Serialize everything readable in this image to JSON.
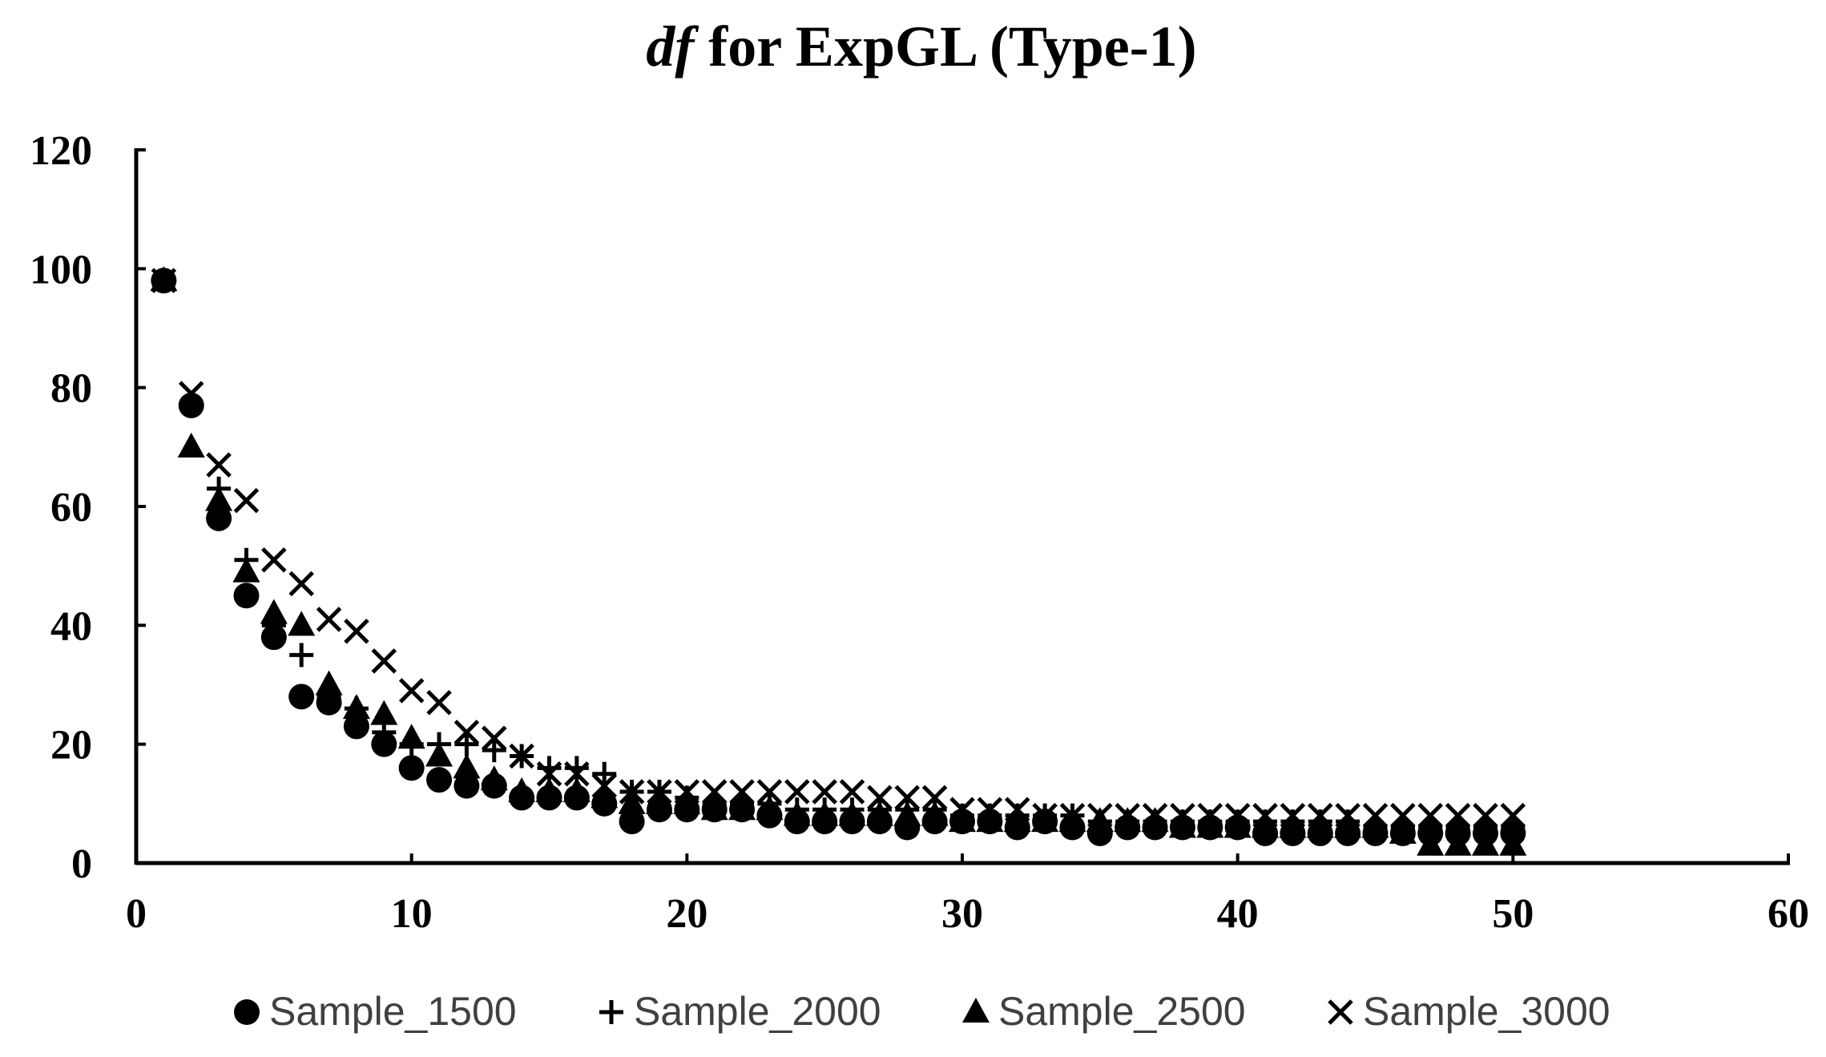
{
  "chart_data": {
    "type": "scatter",
    "title_italic": "df",
    "title_rest": " for ExpGL (Type-1)",
    "xlim": [
      0,
      60
    ],
    "ylim": [
      0,
      120
    ],
    "x_ticks": [
      0,
      10,
      20,
      30,
      40,
      50,
      60
    ],
    "y_ticks": [
      0,
      20,
      40,
      60,
      80,
      100,
      120
    ],
    "grid": false,
    "legend_position": "bottom",
    "x": [
      1,
      2,
      3,
      4,
      5,
      6,
      7,
      8,
      9,
      10,
      11,
      12,
      13,
      14,
      15,
      16,
      17,
      18,
      19,
      20,
      21,
      22,
      23,
      24,
      25,
      26,
      27,
      28,
      29,
      30,
      31,
      32,
      33,
      34,
      35,
      36,
      37,
      38,
      39,
      40,
      41,
      42,
      43,
      44,
      45,
      46,
      47,
      48,
      49,
      50
    ],
    "series": [
      {
        "name": "Sample_1500",
        "marker": "circle",
        "values": [
          98,
          77,
          58,
          45,
          38,
          28,
          27,
          23,
          20,
          16,
          14,
          13,
          13,
          11,
          11,
          11,
          10,
          7,
          9,
          9,
          9,
          9,
          8,
          7,
          7,
          7,
          7,
          6,
          7,
          7,
          7,
          6,
          7,
          6,
          5,
          6,
          6,
          6,
          6,
          6,
          5,
          5,
          5,
          5,
          5,
          5,
          5,
          5,
          5,
          5
        ]
      },
      {
        "name": "Sample_2000",
        "marker": "plus",
        "values": [
          98,
          77,
          63,
          51,
          40,
          35,
          28,
          26,
          22,
          20,
          20,
          20,
          19,
          18,
          16,
          16,
          15,
          12,
          12,
          11,
          10,
          10,
          10,
          9,
          9,
          9,
          9,
          9,
          9,
          8,
          8,
          8,
          8,
          8,
          7,
          7,
          7,
          7,
          7,
          7,
          7,
          7,
          7,
          7,
          6,
          6,
          6,
          6,
          6,
          6
        ]
      },
      {
        "name": "Sample_2500",
        "marker": "triangle",
        "values": [
          98,
          70,
          61,
          49,
          42,
          40,
          30,
          26,
          25,
          21,
          18,
          16,
          14,
          12,
          12,
          12,
          11,
          10,
          10,
          10,
          9,
          9,
          9,
          8,
          8,
          8,
          8,
          8,
          8,
          7,
          7,
          7,
          7,
          7,
          7,
          7,
          7,
          6,
          6,
          6,
          6,
          6,
          6,
          6,
          6,
          5,
          3,
          3,
          3,
          3
        ]
      },
      {
        "name": "Sample_3000",
        "marker": "x",
        "values": [
          98,
          79,
          67,
          61,
          51,
          47,
          41,
          39,
          34,
          29,
          27,
          22,
          21,
          18,
          15,
          15,
          13,
          12,
          12,
          12,
          12,
          12,
          12,
          12,
          12,
          12,
          11,
          11,
          11,
          9,
          9,
          9,
          8,
          8,
          8,
          8,
          8,
          8,
          8,
          8,
          8,
          8,
          8,
          8,
          8,
          8,
          8,
          8,
          8,
          8
        ]
      }
    ]
  }
}
